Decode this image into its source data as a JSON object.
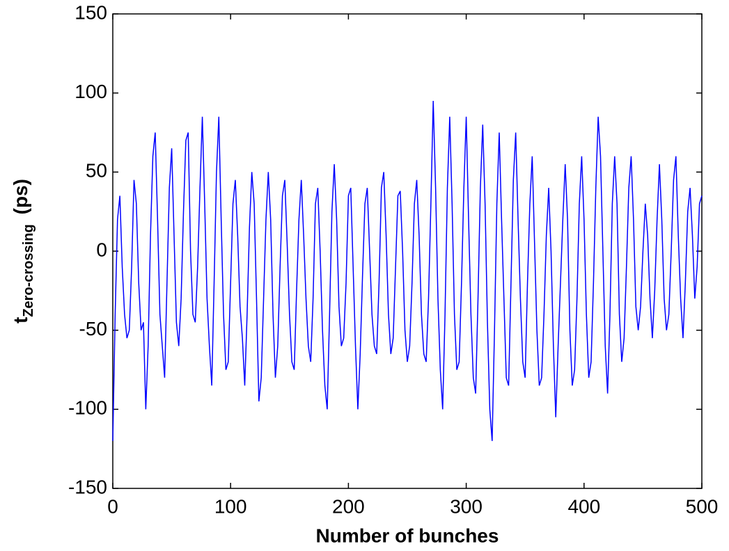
{
  "chart_data": {
    "type": "line",
    "xlabel": "Number of bunches",
    "ylabel": "t",
    "ylabel_subscript": "Zero-crossing",
    "ylabel_unit": "(ps)",
    "color": "#0000ff",
    "xlim": [
      0,
      500
    ],
    "xticks": [
      0,
      100,
      200,
      300,
      400,
      500
    ],
    "ylim": [
      -150,
      150
    ],
    "yticks": [
      -150,
      -100,
      -50,
      0,
      50,
      100,
      150
    ],
    "grid": false,
    "x": [
      0,
      2,
      4,
      6,
      8,
      10,
      12,
      14,
      16,
      18,
      20,
      22,
      24,
      26,
      28,
      30,
      32,
      34,
      36,
      38,
      40,
      42,
      44,
      46,
      48,
      50,
      52,
      54,
      56,
      58,
      60,
      62,
      64,
      66,
      68,
      70,
      72,
      74,
      76,
      78,
      80,
      82,
      84,
      86,
      88,
      90,
      92,
      94,
      96,
      98,
      100,
      102,
      104,
      106,
      108,
      110,
      112,
      114,
      116,
      118,
      120,
      122,
      124,
      126,
      128,
      130,
      132,
      134,
      136,
      138,
      140,
      142,
      144,
      146,
      148,
      150,
      152,
      154,
      156,
      158,
      160,
      162,
      164,
      166,
      168,
      170,
      172,
      174,
      176,
      178,
      180,
      182,
      184,
      186,
      188,
      190,
      192,
      194,
      196,
      198,
      200,
      202,
      204,
      206,
      208,
      210,
      212,
      214,
      216,
      218,
      220,
      222,
      224,
      226,
      228,
      230,
      232,
      234,
      236,
      238,
      240,
      242,
      244,
      246,
      248,
      250,
      252,
      254,
      256,
      258,
      260,
      262,
      264,
      266,
      268,
      270,
      272,
      274,
      276,
      278,
      280,
      282,
      284,
      286,
      288,
      290,
      292,
      294,
      296,
      298,
      300,
      302,
      304,
      306,
      308,
      310,
      312,
      314,
      316,
      318,
      320,
      322,
      324,
      326,
      328,
      330,
      332,
      334,
      336,
      338,
      340,
      342,
      344,
      346,
      348,
      350,
      352,
      354,
      356,
      358,
      360,
      362,
      364,
      366,
      368,
      370,
      372,
      374,
      376,
      378,
      380,
      382,
      384,
      386,
      388,
      390,
      392,
      394,
      396,
      398,
      400,
      402,
      404,
      406,
      408,
      410,
      412,
      414,
      416,
      418,
      420,
      422,
      424,
      426,
      428,
      430,
      432,
      434,
      436,
      438,
      440,
      442,
      444,
      446,
      448,
      450,
      452,
      454,
      456,
      458,
      460,
      462,
      464,
      466,
      468,
      470,
      472,
      474,
      476,
      478,
      480,
      482,
      484,
      486,
      488,
      490,
      492,
      494,
      496,
      498,
      500
    ],
    "values": [
      -120,
      -40,
      20,
      35,
      -10,
      -40,
      -55,
      -50,
      -10,
      45,
      30,
      -20,
      -50,
      -45,
      -100,
      -60,
      10,
      60,
      75,
      20,
      -40,
      -60,
      -80,
      -20,
      40,
      65,
      10,
      -45,
      -60,
      -30,
      25,
      70,
      75,
      0,
      -40,
      -45,
      -10,
      40,
      85,
      30,
      -30,
      -60,
      -85,
      -20,
      50,
      85,
      20,
      -40,
      -75,
      -70,
      -20,
      30,
      45,
      10,
      -35,
      -55,
      -85,
      -40,
      15,
      50,
      30,
      -30,
      -95,
      -80,
      -30,
      20,
      50,
      20,
      -40,
      -80,
      -60,
      -10,
      35,
      45,
      5,
      -40,
      -70,
      -75,
      -25,
      20,
      45,
      10,
      -30,
      -60,
      -70,
      -30,
      30,
      40,
      0,
      -50,
      -85,
      -100,
      -40,
      25,
      55,
      20,
      -35,
      -60,
      -55,
      -20,
      35,
      40,
      -10,
      -60,
      -100,
      -65,
      -15,
      30,
      40,
      0,
      -40,
      -60,
      -65,
      -20,
      40,
      50,
      10,
      -40,
      -65,
      -55,
      -10,
      35,
      38,
      0,
      -50,
      -70,
      -60,
      -20,
      30,
      45,
      10,
      -40,
      -65,
      -70,
      -30,
      30,
      95,
      40,
      -30,
      -75,
      -100,
      -40,
      40,
      85,
      30,
      -40,
      -75,
      -70,
      -20,
      40,
      85,
      20,
      -40,
      -80,
      -90,
      -30,
      40,
      80,
      30,
      -45,
      -100,
      -120,
      -50,
      30,
      75,
      20,
      -30,
      -80,
      -85,
      -20,
      45,
      75,
      20,
      -30,
      -70,
      -80,
      -20,
      30,
      60,
      5,
      -50,
      -85,
      -80,
      -40,
      10,
      40,
      0,
      -60,
      -105,
      -60,
      -20,
      20,
      55,
      20,
      -50,
      -85,
      -75,
      -30,
      30,
      60,
      20,
      -40,
      -80,
      -70,
      -20,
      40,
      85,
      60,
      0,
      -60,
      -90,
      -40,
      30,
      60,
      30,
      -40,
      -70,
      -55,
      -10,
      40,
      60,
      20,
      -35,
      -50,
      -35,
      0,
      30,
      10,
      -30,
      -55,
      -25,
      20,
      55,
      20,
      -30,
      -50,
      -40,
      0,
      45,
      60,
      10,
      -30,
      -55,
      -20,
      25,
      40,
      10,
      -30,
      -10,
      30,
      35
    ]
  }
}
